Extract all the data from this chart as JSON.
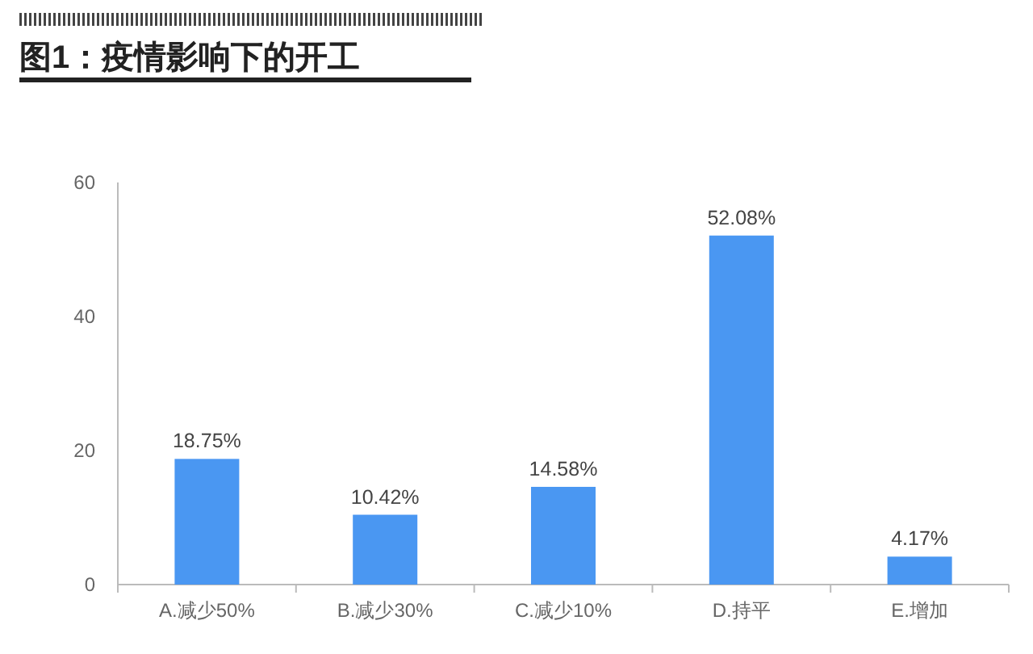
{
  "chart_data": {
    "type": "bar",
    "title": "图1：疫情影响下的开工",
    "categories": [
      "A.减少50%",
      "B.减少30%",
      "C.减少10%",
      "D.持平",
      "E.增加"
    ],
    "values": [
      18.75,
      10.42,
      14.58,
      52.08,
      4.17
    ],
    "value_labels": [
      "18.75%",
      "10.42%",
      "14.58%",
      "52.08%",
      "4.17%"
    ],
    "color": "#4a97f2",
    "ylim": [
      0,
      60
    ],
    "yticks": [
      0,
      20,
      40,
      60
    ],
    "grid": false
  }
}
